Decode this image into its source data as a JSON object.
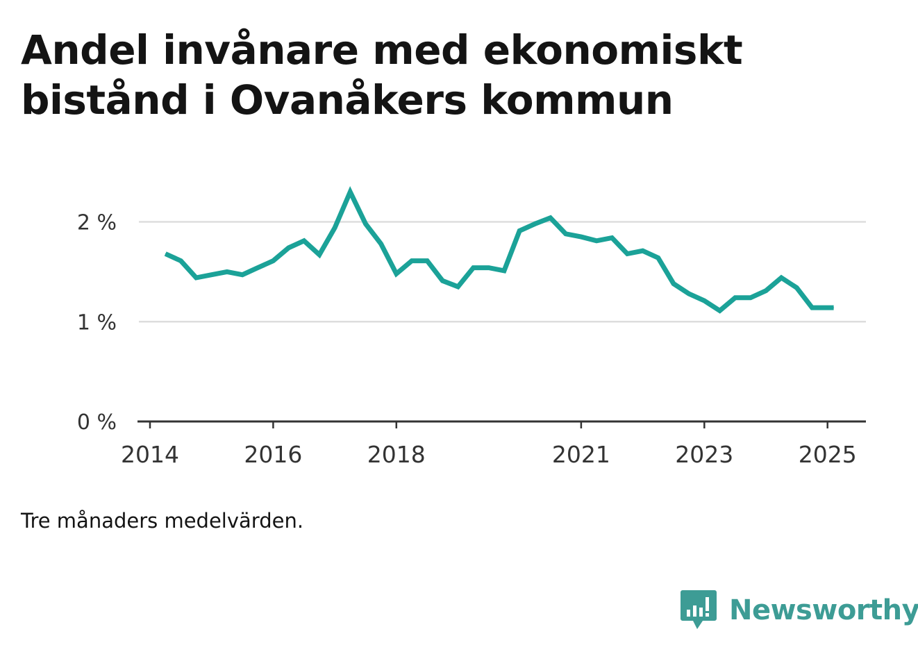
{
  "title": "Andel invånare med ekonomiskt bistånd i Ovanåkers kommun",
  "note": "Tre månaders medelvärden.",
  "brand": {
    "name": "Newsworthy",
    "icon": "bar-chart-speech-bubble-icon",
    "color": "#3d9c95"
  },
  "colors": {
    "line": "#1ba298",
    "grid": "#dddddd",
    "axis": "#333333",
    "text": "#333333"
  },
  "chart_data": {
    "type": "line",
    "title": "Andel invånare med ekonomiskt bistånd i Ovanåkers kommun",
    "xlabel": "",
    "ylabel": "",
    "y_unit": "%",
    "ylim": [
      0,
      2.4
    ],
    "y_ticks": [
      {
        "value": 0,
        "label": "0 %"
      },
      {
        "value": 1,
        "label": "1 %"
      },
      {
        "value": 2,
        "label": "2 %"
      }
    ],
    "x_range": [
      2014.0,
      2025.5
    ],
    "x_ticks": [
      {
        "value": 2014,
        "label": "2014"
      },
      {
        "value": 2016,
        "label": "2016"
      },
      {
        "value": 2018,
        "label": "2018"
      },
      {
        "value": 2021,
        "label": "2021"
      },
      {
        "value": 2023,
        "label": "2023"
      },
      {
        "value": 2025,
        "label": "2025"
      }
    ],
    "grid": true,
    "legend": "none",
    "series": [
      {
        "x": [
          2014.25,
          2014.5,
          2014.75,
          2015.0,
          2015.25,
          2015.5,
          2015.75,
          2016.0,
          2016.25,
          2016.5,
          2016.75,
          2017.0,
          2017.25,
          2017.5,
          2017.75,
          2018.0,
          2018.25,
          2018.5,
          2018.75,
          2019.0,
          2019.25,
          2019.5,
          2019.75,
          2020.0,
          2020.25,
          2020.5,
          2020.75,
          2021.0,
          2021.25,
          2021.5,
          2021.75,
          2022.0,
          2022.25,
          2022.5,
          2022.75,
          2023.0,
          2023.25,
          2023.5,
          2023.75,
          2024.0,
          2024.25,
          2024.5,
          2024.75,
          2025.0,
          2025.1
        ],
        "values": [
          1.68,
          1.61,
          1.44,
          1.47,
          1.5,
          1.47,
          1.54,
          1.61,
          1.74,
          1.81,
          1.67,
          1.94,
          2.3,
          1.98,
          1.78,
          1.48,
          1.61,
          1.61,
          1.41,
          1.35,
          1.54,
          1.54,
          1.51,
          1.91,
          1.98,
          2.04,
          1.88,
          1.85,
          1.81,
          1.84,
          1.68,
          1.71,
          1.64,
          1.38,
          1.28,
          1.21,
          1.11,
          1.24,
          1.24,
          1.31,
          1.44,
          1.34,
          1.14,
          1.14,
          1.14
        ]
      }
    ]
  }
}
